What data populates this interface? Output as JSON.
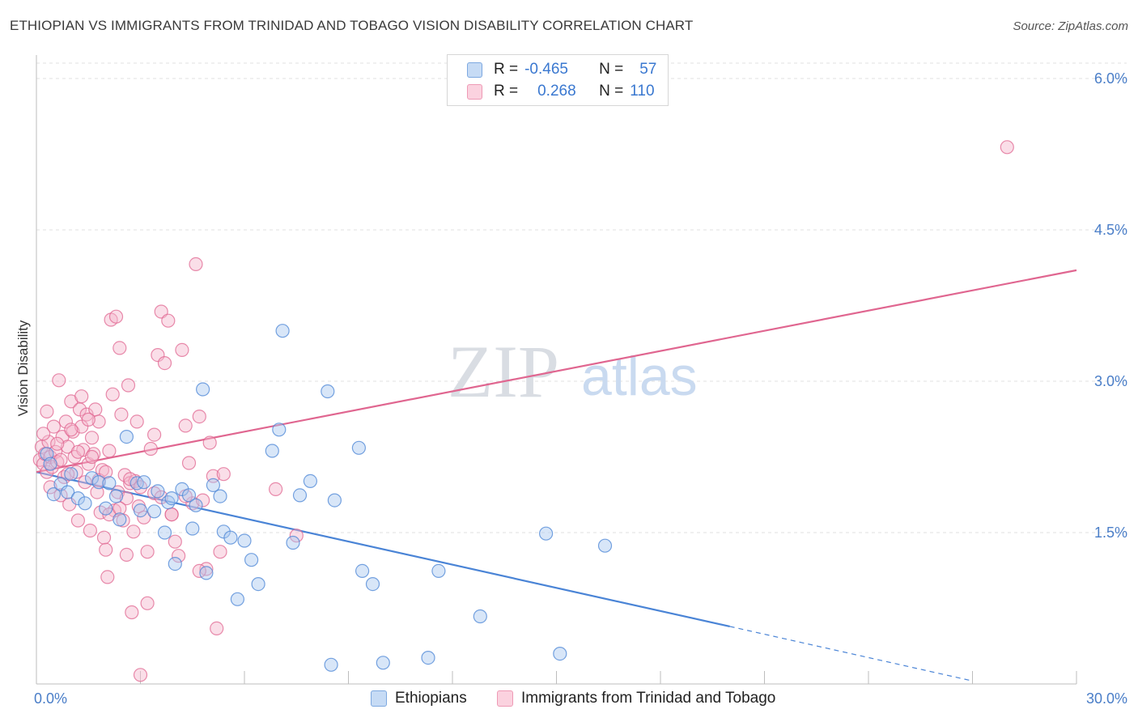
{
  "title": "ETHIOPIAN VS IMMIGRANTS FROM TRINIDAD AND TOBAGO VISION DISABILITY CORRELATION CHART",
  "source": "Source: ZipAtlas.com",
  "watermark": {
    "zip": "ZIP",
    "atlas": "atlas"
  },
  "legend": {
    "rows": [
      {
        "r_label": "R =",
        "r_value": "-0.465",
        "n_label": "N =",
        "n_value": "57",
        "color": "#a8c8f0"
      },
      {
        "r_label": "R =",
        "r_value": "0.268",
        "n_label": "N =",
        "n_value": "110",
        "color": "#f5b6cb"
      }
    ]
  },
  "chart_data": {
    "type": "scatter",
    "title": "ETHIOPIAN VS IMMIGRANTS FROM TRINIDAD AND TOBAGO VISION DISABILITY CORRELATION CHART",
    "xlabel": "",
    "ylabel": "Vision Disability",
    "xlim": [
      0,
      30
    ],
    "ylim": [
      0,
      6.15
    ],
    "x_tick_labels": [
      "0.0%",
      "30.0%"
    ],
    "y_ticks": [
      1.5,
      3.0,
      4.5,
      6.0
    ],
    "y_tick_labels": [
      "1.5%",
      "3.0%",
      "4.5%",
      "6.0%"
    ],
    "grid": true,
    "legend_position": "top-center",
    "series": [
      {
        "name": "Ethiopians",
        "color": "#4a84d6",
        "fill": "#a8c8f0",
        "r": -0.465,
        "n": 57,
        "trend": {
          "x0": 0,
          "y0": 2.1,
          "x1": 20,
          "y1": 0.57,
          "dash_to_x": 27,
          "dash_to_y": 0.03
        },
        "points": [
          [
            0.3,
            2.28
          ],
          [
            0.4,
            2.18
          ],
          [
            0.5,
            1.88
          ],
          [
            0.7,
            1.98
          ],
          [
            0.9,
            1.9
          ],
          [
            1.0,
            2.08
          ],
          [
            1.2,
            1.84
          ],
          [
            1.4,
            1.79
          ],
          [
            1.6,
            2.04
          ],
          [
            1.8,
            2.0
          ],
          [
            2.0,
            1.74
          ],
          [
            2.1,
            1.99
          ],
          [
            2.3,
            1.86
          ],
          [
            2.4,
            1.63
          ],
          [
            2.6,
            2.45
          ],
          [
            2.9,
            1.99
          ],
          [
            3.0,
            1.72
          ],
          [
            3.1,
            2.0
          ],
          [
            3.4,
            1.71
          ],
          [
            3.5,
            1.91
          ],
          [
            3.7,
            1.5
          ],
          [
            3.8,
            1.8
          ],
          [
            3.9,
            1.84
          ],
          [
            4.0,
            1.19
          ],
          [
            4.2,
            1.93
          ],
          [
            4.4,
            1.87
          ],
          [
            4.5,
            1.54
          ],
          [
            4.6,
            1.77
          ],
          [
            4.8,
            2.92
          ],
          [
            4.9,
            1.1
          ],
          [
            5.1,
            1.97
          ],
          [
            5.3,
            1.86
          ],
          [
            5.4,
            1.51
          ],
          [
            5.6,
            1.45
          ],
          [
            5.8,
            0.84
          ],
          [
            6.0,
            1.42
          ],
          [
            6.2,
            1.23
          ],
          [
            6.4,
            0.99
          ],
          [
            6.8,
            2.31
          ],
          [
            7.0,
            2.52
          ],
          [
            7.1,
            3.5
          ],
          [
            7.4,
            1.4
          ],
          [
            7.6,
            1.87
          ],
          [
            7.9,
            2.01
          ],
          [
            8.4,
            2.9
          ],
          [
            8.5,
            0.19
          ],
          [
            8.6,
            1.82
          ],
          [
            9.3,
            2.34
          ],
          [
            9.4,
            1.12
          ],
          [
            9.7,
            0.99
          ],
          [
            10.0,
            0.21
          ],
          [
            11.3,
            0.26
          ],
          [
            11.6,
            1.12
          ],
          [
            12.8,
            0.67
          ],
          [
            14.7,
            1.49
          ],
          [
            15.1,
            0.3
          ],
          [
            16.4,
            1.37
          ]
        ]
      },
      {
        "name": "Immigrants from Trinidad and Tobago",
        "color": "#e06690",
        "fill": "#f5b6cb",
        "r": 0.268,
        "n": 110,
        "trend": {
          "x0": 0,
          "y0": 2.1,
          "x1": 30,
          "y1": 4.1
        },
        "points": [
          [
            0.1,
            2.22
          ],
          [
            0.15,
            2.35
          ],
          [
            0.2,
            2.18
          ],
          [
            0.25,
            2.28
          ],
          [
            0.3,
            2.1
          ],
          [
            0.35,
            2.4
          ],
          [
            0.4,
            2.25
          ],
          [
            0.45,
            2.15
          ],
          [
            0.5,
            2.55
          ],
          [
            0.55,
            2.3
          ],
          [
            0.6,
            2.2
          ],
          [
            0.65,
            3.01
          ],
          [
            0.7,
            1.87
          ],
          [
            0.75,
            2.45
          ],
          [
            0.8,
            2.05
          ],
          [
            0.85,
            2.6
          ],
          [
            0.9,
            2.35
          ],
          [
            0.95,
            1.78
          ],
          [
            1.0,
            2.8
          ],
          [
            1.05,
            2.5
          ],
          [
            1.1,
            2.25
          ],
          [
            1.15,
            2.1
          ],
          [
            1.2,
            1.62
          ],
          [
            1.25,
            2.72
          ],
          [
            1.3,
            2.55
          ],
          [
            1.35,
            2.32
          ],
          [
            1.4,
            2.0
          ],
          [
            1.45,
            2.67
          ],
          [
            1.5,
            2.18
          ],
          [
            1.55,
            1.52
          ],
          [
            1.6,
            2.44
          ],
          [
            1.65,
            2.28
          ],
          [
            1.7,
            2.72
          ],
          [
            1.75,
            1.9
          ],
          [
            1.8,
            2.6
          ],
          [
            1.85,
            1.7
          ],
          [
            1.9,
            2.12
          ],
          [
            1.95,
            1.45
          ],
          [
            2.0,
            1.33
          ],
          [
            2.05,
            1.06
          ],
          [
            2.1,
            2.31
          ],
          [
            2.15,
            3.61
          ],
          [
            2.2,
            2.87
          ],
          [
            2.25,
            1.72
          ],
          [
            2.3,
            3.64
          ],
          [
            2.35,
            1.9
          ],
          [
            2.4,
            3.33
          ],
          [
            2.45,
            2.67
          ],
          [
            2.5,
            1.62
          ],
          [
            2.55,
            2.07
          ],
          [
            2.6,
            1.84
          ],
          [
            2.65,
            2.96
          ],
          [
            2.7,
            1.99
          ],
          [
            2.75,
            0.71
          ],
          [
            2.8,
            1.51
          ],
          [
            2.85,
            2.01
          ],
          [
            2.9,
            2.6
          ],
          [
            2.95,
            1.76
          ],
          [
            3.0,
            0.09
          ],
          [
            3.1,
            1.65
          ],
          [
            3.2,
            1.31
          ],
          [
            3.3,
            2.33
          ],
          [
            3.4,
            1.89
          ],
          [
            3.5,
            3.26
          ],
          [
            3.6,
            3.69
          ],
          [
            3.7,
            3.18
          ],
          [
            3.8,
            3.6
          ],
          [
            3.9,
            1.68
          ],
          [
            4.0,
            1.41
          ],
          [
            4.1,
            1.27
          ],
          [
            4.2,
            3.31
          ],
          [
            4.3,
            2.56
          ],
          [
            4.4,
            2.19
          ],
          [
            4.5,
            1.79
          ],
          [
            4.6,
            4.16
          ],
          [
            4.7,
            2.65
          ],
          [
            4.8,
            1.82
          ],
          [
            4.9,
            1.14
          ],
          [
            5.0,
            2.39
          ],
          [
            5.1,
            2.06
          ],
          [
            5.2,
            0.55
          ],
          [
            5.3,
            1.31
          ],
          [
            5.4,
            2.08
          ],
          [
            6.9,
            1.93
          ],
          [
            7.5,
            1.47
          ],
          [
            28.0,
            5.32
          ],
          [
            0.2,
            2.48
          ],
          [
            0.4,
            1.95
          ],
          [
            0.6,
            2.38
          ],
          [
            0.9,
            2.08
          ],
          [
            1.2,
            2.3
          ],
          [
            1.5,
            2.62
          ],
          [
            1.8,
            2.02
          ],
          [
            2.1,
            1.68
          ],
          [
            2.4,
            1.74
          ],
          [
            2.7,
            2.03
          ],
          [
            3.0,
            1.95
          ],
          [
            3.2,
            0.8
          ],
          [
            3.6,
            1.85
          ],
          [
            3.9,
            1.68
          ],
          [
            4.3,
            1.86
          ],
          [
            4.7,
            1.12
          ],
          [
            0.3,
            2.7
          ],
          [
            0.7,
            2.22
          ],
          [
            1.0,
            2.52
          ],
          [
            1.3,
            2.85
          ],
          [
            1.6,
            2.25
          ],
          [
            2.0,
            2.1
          ],
          [
            2.6,
            1.28
          ],
          [
            3.4,
            2.47
          ]
        ]
      }
    ]
  }
}
